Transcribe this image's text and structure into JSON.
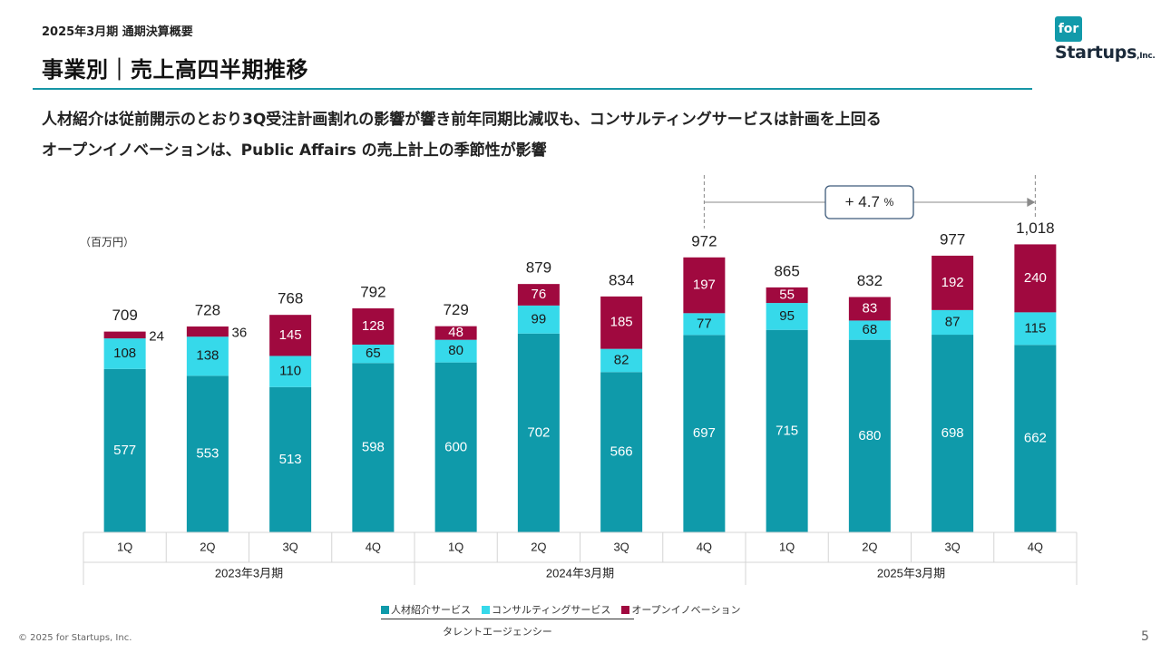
{
  "header": {
    "supertitle": "2025年3月期 通期決算概要",
    "title": "事業別｜売上高四半期推移",
    "logo_top": "for",
    "logo_main": "Startups",
    "logo_suffix": ",Inc."
  },
  "headlines": [
    "人材紹介は従前開示のとおり3Q受注計画割れの影響が響き前年同期比減収も、コンサルティングサービスは計画を上回る",
    "オープンイノベーションは、Public Affairs の売上計上の季節性が影響"
  ],
  "footer": {
    "copyright": "© 2025 for Startups, Inc.",
    "page": "5"
  },
  "colors": {
    "accent": "#1796a6",
    "talent": "#0f9aaa",
    "consulting": "#36d9ea",
    "innovation": "#a0093f"
  },
  "chart_data": {
    "type": "bar",
    "stacked": true,
    "unit": "（百万円）",
    "categories": [
      "1Q",
      "2Q",
      "3Q",
      "4Q",
      "1Q",
      "2Q",
      "3Q",
      "4Q",
      "1Q",
      "2Q",
      "3Q",
      "4Q"
    ],
    "groups": [
      {
        "label": "2023年3月期",
        "count": 4
      },
      {
        "label": "2024年3月期",
        "count": 4
      },
      {
        "label": "2025年3月期",
        "count": 4
      }
    ],
    "series": [
      {
        "name": "人材紹介サービス",
        "values": [
          577,
          553,
          513,
          598,
          600,
          702,
          566,
          697,
          715,
          680,
          698,
          662
        ]
      },
      {
        "name": "コンサルティングサービス",
        "values": [
          108,
          138,
          110,
          65,
          80,
          99,
          82,
          77,
          95,
          68,
          87,
          115
        ]
      },
      {
        "name": "オープンイノベーション",
        "values": [
          24,
          36,
          145,
          128,
          48,
          76,
          185,
          197,
          55,
          83,
          192,
          240
        ]
      }
    ],
    "totals": [
      "709",
      "728",
      "768",
      "792",
      "729",
      "879",
      "834",
      "972",
      "865",
      "832",
      "977",
      "1,018"
    ],
    "ylim": [
      0,
      1060
    ],
    "legend_placement": "bottom",
    "legend_sublabel": "タレントエージェンシー",
    "annotation": {
      "text": "+ 4.7",
      "unit": "%",
      "from_index": 7,
      "to_index": 11
    }
  }
}
